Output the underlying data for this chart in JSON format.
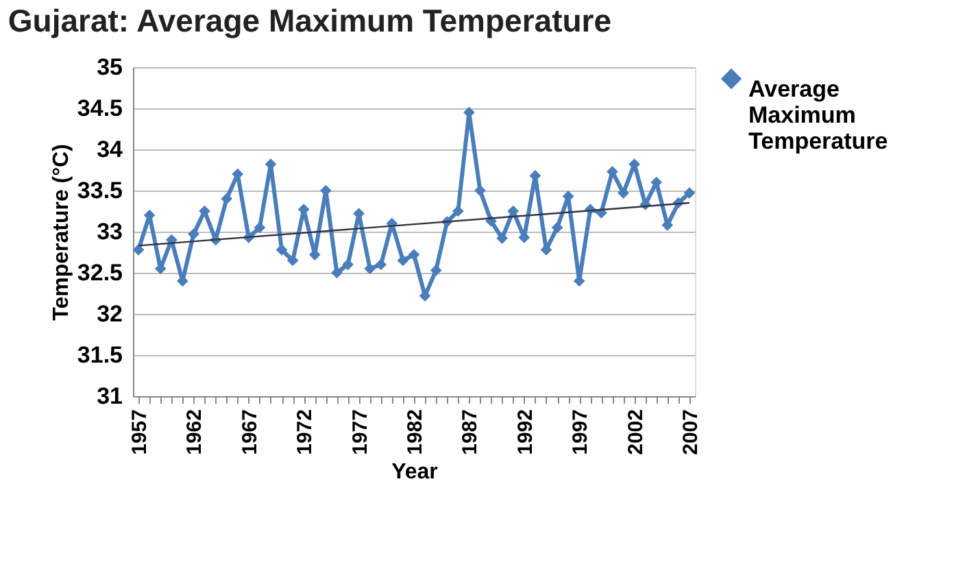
{
  "chart_data": {
    "type": "line",
    "title": "Gujarat: Average Maximum Temperature",
    "xlabel": "Year",
    "ylabel": "Temperature (°C)",
    "x": [
      1957,
      1958,
      1959,
      1960,
      1961,
      1962,
      1963,
      1964,
      1965,
      1966,
      1967,
      1968,
      1969,
      1970,
      1971,
      1972,
      1973,
      1974,
      1975,
      1976,
      1977,
      1978,
      1979,
      1980,
      1981,
      1982,
      1983,
      1984,
      1985,
      1986,
      1987,
      1988,
      1989,
      1990,
      1991,
      1992,
      1993,
      1994,
      1995,
      1996,
      1997,
      1998,
      1999,
      2000,
      2001,
      2002,
      2003,
      2004,
      2005,
      2006,
      2007
    ],
    "series": [
      {
        "name": "Average Maximum Temperature",
        "color": "#4a7ebb",
        "marker": "diamond",
        "values": [
          32.78,
          33.2,
          32.55,
          32.9,
          32.4,
          32.97,
          33.25,
          32.9,
          33.4,
          33.7,
          32.93,
          33.05,
          33.82,
          32.78,
          32.65,
          33.27,
          32.72,
          33.5,
          32.5,
          32.6,
          33.22,
          32.55,
          32.6,
          33.1,
          32.65,
          32.72,
          32.22,
          32.53,
          33.12,
          33.25,
          34.45,
          33.5,
          33.13,
          32.92,
          33.25,
          32.93,
          33.68,
          32.78,
          33.05,
          33.43,
          32.4,
          33.27,
          33.23,
          33.73,
          33.47,
          33.82,
          33.33,
          33.6,
          33.08,
          33.35,
          33.47
        ]
      },
      {
        "type": "line",
        "color": "#333344",
        "marker": "none",
        "x": [
          1957,
          2007
        ],
        "values": [
          32.83,
          33.35
        ]
      }
    ],
    "xlim": [
      1956.5,
      2007.5
    ],
    "xticks": [
      1957,
      {
        "value": 1958,
        "label": null
      },
      {
        "value": 1959,
        "label": null
      },
      {
        "value": 1960,
        "label": null
      },
      {
        "value": 1961,
        "label": null
      },
      1962,
      {
        "value": 1963,
        "label": null
      },
      {
        "value": 1964,
        "label": null
      },
      {
        "value": 1965,
        "label": null
      },
      {
        "value": 1966,
        "label": null
      },
      1967,
      {
        "value": 1968,
        "label": null
      },
      {
        "value": 1969,
        "label": null
      },
      {
        "value": 1970,
        "label": null
      },
      {
        "value": 1971,
        "label": null
      },
      1972,
      {
        "value": 1973,
        "label": null
      },
      {
        "value": 1974,
        "label": null
      },
      {
        "value": 1975,
        "label": null
      },
      {
        "value": 1976,
        "label": null
      },
      1977,
      {
        "value": 1978,
        "label": null
      },
      {
        "value": 1979,
        "label": null
      },
      {
        "value": 1980,
        "label": null
      },
      {
        "value": 1981,
        "label": null
      },
      1982,
      {
        "value": 1983,
        "label": null
      },
      {
        "value": 1984,
        "label": null
      },
      {
        "value": 1985,
        "label": null
      },
      {
        "value": 1986,
        "label": null
      },
      1987,
      {
        "value": 1988,
        "label": null
      },
      {
        "value": 1989,
        "label": null
      },
      {
        "value": 1990,
        "label": null
      },
      {
        "value": 1991,
        "label": null
      },
      1992,
      {
        "value": 1993,
        "label": null
      },
      {
        "value": 1994,
        "label": null
      },
      {
        "value": 1995,
        "label": null
      },
      {
        "value": 1996,
        "label": null
      },
      1997,
      {
        "value": 1998,
        "label": null
      },
      {
        "value": 1999,
        "label": null
      },
      {
        "value": 2000,
        "label": null
      },
      {
        "value": 2001,
        "label": null
      },
      2002,
      {
        "value": 2003,
        "label": null
      },
      {
        "value": 2004,
        "label": null
      },
      {
        "value": 2005,
        "label": null
      },
      {
        "value": 2006,
        "label": null
      },
      2007
    ],
    "ylim": [
      31,
      35
    ],
    "yticks": [
      31,
      31.5,
      32,
      32.5,
      33,
      33.5,
      34,
      34.5,
      35
    ],
    "grid": "y",
    "legend": "right"
  }
}
